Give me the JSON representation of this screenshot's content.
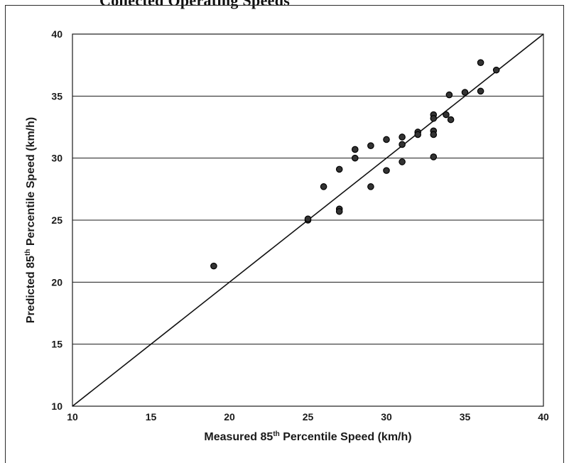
{
  "caption": "Collected Operating Speeds",
  "chart_data": {
    "type": "scatter",
    "title": "",
    "xlabel": {
      "pre": "Measured 85",
      "sup": "th",
      "post": " Percentile Speed (km/h)"
    },
    "ylabel": {
      "pre": "Predicted 85",
      "sup": "th",
      "post": " Percentile Speed (km/h)"
    },
    "xlim": [
      10,
      40
    ],
    "ylim": [
      10,
      40
    ],
    "x_ticks": [
      10,
      15,
      20,
      25,
      30,
      35,
      40
    ],
    "y_ticks": [
      10,
      15,
      20,
      25,
      30,
      35,
      40
    ],
    "grid": "horizontal",
    "legend": "none",
    "reference_line": {
      "type": "y=x",
      "from": [
        10,
        10
      ],
      "to": [
        40,
        40
      ]
    },
    "marker_color": "#333333",
    "points": [
      {
        "x": 19,
        "y": 21.3
      },
      {
        "x": 25,
        "y": 25.0
      },
      {
        "x": 25,
        "y": 25.1
      },
      {
        "x": 26,
        "y": 27.7
      },
      {
        "x": 27,
        "y": 29.1
      },
      {
        "x": 27,
        "y": 25.9
      },
      {
        "x": 27,
        "y": 25.7
      },
      {
        "x": 28,
        "y": 30.7
      },
      {
        "x": 28,
        "y": 30.0
      },
      {
        "x": 29,
        "y": 31.0
      },
      {
        "x": 29,
        "y": 27.7
      },
      {
        "x": 30,
        "y": 31.5
      },
      {
        "x": 30,
        "y": 29.0
      },
      {
        "x": 31,
        "y": 31.7
      },
      {
        "x": 31,
        "y": 31.1
      },
      {
        "x": 31,
        "y": 29.7
      },
      {
        "x": 32,
        "y": 32.1
      },
      {
        "x": 32,
        "y": 31.9
      },
      {
        "x": 33,
        "y": 33.5
      },
      {
        "x": 33,
        "y": 33.2
      },
      {
        "x": 33,
        "y": 32.2
      },
      {
        "x": 33,
        "y": 31.9
      },
      {
        "x": 33,
        "y": 30.1
      },
      {
        "x": 33.8,
        "y": 33.5
      },
      {
        "x": 34,
        "y": 35.1
      },
      {
        "x": 34.1,
        "y": 33.1
      },
      {
        "x": 35,
        "y": 35.3
      },
      {
        "x": 36,
        "y": 37.7
      },
      {
        "x": 36,
        "y": 35.4
      },
      {
        "x": 37,
        "y": 37.1
      }
    ]
  }
}
